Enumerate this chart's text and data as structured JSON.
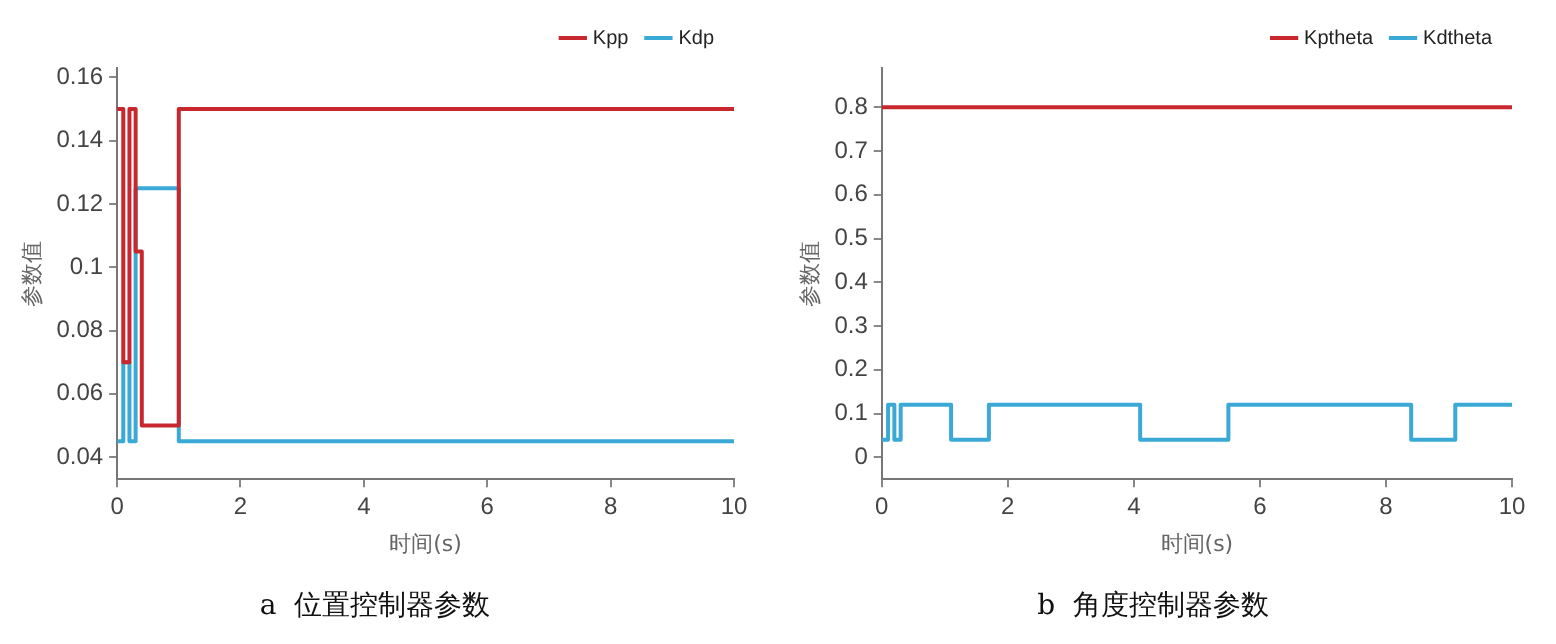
{
  "chart_data": [
    {
      "type": "step",
      "title": "a  位置控制器参数",
      "xlabel": "时间(s)",
      "ylabel": "参数值",
      "xlim": [
        0,
        10
      ],
      "xticks": [
        0,
        2,
        4,
        6,
        8,
        10
      ],
      "ylim": [
        0.033,
        0.163
      ],
      "yticks": [
        0.04,
        0.06,
        {
          "value": 0.08,
          "label": "0.08"
        },
        {
          "value": 0.1,
          "label": "0.1"
        },
        0.12,
        0.14,
        0.16
      ],
      "grid": false,
      "legend": "top right",
      "series": [
        {
          "name": "Kpp",
          "color": "#c8282d",
          "x": [
            0,
            0.1,
            0.2,
            0.3,
            0.4,
            1.0,
            10
          ],
          "values": [
            0.15,
            0.07,
            0.15,
            0.105,
            0.05,
            0.15,
            0.15
          ]
        },
        {
          "name": "Kdp",
          "color": "#3aa9d6",
          "x": [
            0,
            0.1,
            0.2,
            0.3,
            1.0,
            10
          ],
          "values": [
            0.045,
            0.07,
            0.045,
            0.125,
            0.045,
            0.045
          ]
        }
      ]
    },
    {
      "type": "step",
      "title": "b  角度控制器参数",
      "xlabel": "时间(s)",
      "ylabel": "参数值",
      "xlim": [
        0,
        10
      ],
      "xticks": [
        0,
        2,
        4,
        6,
        8,
        10
      ],
      "ylim": [
        -0.05,
        0.89
      ],
      "yticks": [
        0,
        0.1,
        0.2,
        0.3,
        0.4,
        0.5,
        0.6,
        0.7,
        0.8
      ],
      "grid": false,
      "legend": "top right",
      "series": [
        {
          "name": "Kptheta",
          "color": "#c8282d",
          "x": [
            0,
            10
          ],
          "values": [
            0.8,
            0.8
          ]
        },
        {
          "name": "Kdtheta",
          "color": "#3aa9d6",
          "x": [
            0,
            0.1,
            0.2,
            0.3,
            1.1,
            1.7,
            4.1,
            5.5,
            8.4,
            9.1,
            10
          ],
          "values": [
            0.04,
            0.12,
            0.04,
            0.12,
            0.04,
            0.12,
            0.04,
            0.12,
            0.04,
            0.12,
            0.12
          ]
        }
      ]
    }
  ]
}
